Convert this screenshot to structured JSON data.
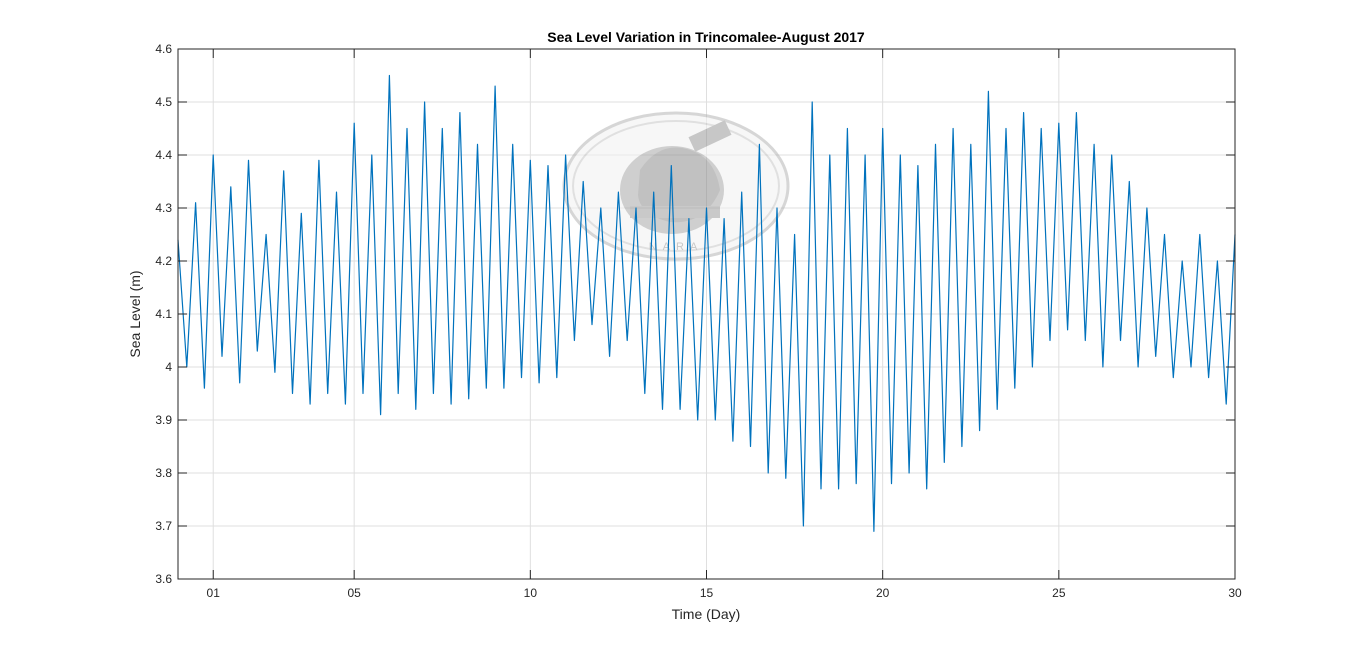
{
  "chart_data": {
    "type": "line",
    "title": "Sea Level Variation in Trincomalee-August 2017",
    "xlabel": "Time (Day)",
    "ylabel": "Sea Level (m)",
    "xlim": [
      0,
      30
    ],
    "ylim": [
      3.6,
      4.6
    ],
    "grid": true,
    "x_ticks": [
      1,
      5,
      10,
      15,
      20,
      25,
      30
    ],
    "x_tick_labels": [
      "01",
      "05",
      "10",
      "15",
      "20",
      "25",
      "30"
    ],
    "y_ticks": [
      3.6,
      3.7,
      3.8,
      3.9,
      4.0,
      4.1,
      4.2,
      4.3,
      4.4,
      4.5,
      4.6
    ],
    "y_tick_labels": [
      "3.6",
      "3.7",
      "3.8",
      "3.9",
      "4",
      "4.1",
      "4.2",
      "4.3",
      "4.4",
      "4.5",
      "4.6"
    ],
    "series": [
      {
        "name": "Sea Level",
        "color": "#0072bd",
        "x": [
          0,
          0.25,
          0.5,
          0.75,
          1,
          1.25,
          1.5,
          1.75,
          2,
          2.25,
          2.5,
          2.75,
          3,
          3.25,
          3.5,
          3.75,
          4,
          4.25,
          4.5,
          4.75,
          5,
          5.25,
          5.5,
          5.75,
          6,
          6.25,
          6.5,
          6.75,
          7,
          7.25,
          7.5,
          7.75,
          8,
          8.25,
          8.5,
          8.75,
          9,
          9.25,
          9.5,
          9.75,
          10,
          10.25,
          10.5,
          10.75,
          11,
          11.25,
          11.5,
          11.75,
          12,
          12.25,
          12.5,
          12.75,
          13,
          13.25,
          13.5,
          13.75,
          14,
          14.25,
          14.5,
          14.75,
          15,
          15.25,
          15.5,
          15.75,
          16,
          16.25,
          16.5,
          16.75,
          17,
          17.25,
          17.5,
          17.75,
          18,
          18.25,
          18.5,
          18.75,
          19,
          19.25,
          19.5,
          19.75,
          20,
          20.25,
          20.5,
          20.75,
          21,
          21.25,
          21.5,
          21.75,
          22,
          22.25,
          22.5,
          22.75,
          23,
          23.25,
          23.5,
          23.75,
          24,
          24.25,
          24.5,
          24.75,
          25,
          25.25,
          25.5,
          25.75,
          26,
          26.25,
          26.5,
          26.75,
          27,
          27.25,
          27.5,
          27.75,
          28,
          28.25,
          28.5,
          28.75,
          29,
          29.25,
          29.5,
          29.75,
          30
        ],
        "y": [
          4.24,
          4.0,
          4.31,
          3.96,
          4.4,
          4.02,
          4.34,
          3.97,
          4.39,
          4.03,
          4.25,
          3.99,
          4.37,
          3.95,
          4.29,
          3.93,
          4.39,
          3.95,
          4.33,
          3.93,
          4.46,
          3.95,
          4.4,
          3.91,
          4.55,
          3.95,
          4.45,
          3.92,
          4.5,
          3.95,
          4.45,
          3.93,
          4.48,
          3.94,
          4.42,
          3.96,
          4.53,
          3.96,
          4.42,
          3.98,
          4.39,
          3.97,
          4.38,
          3.98,
          4.4,
          4.05,
          4.35,
          4.08,
          4.3,
          4.02,
          4.33,
          4.05,
          4.3,
          3.95,
          4.33,
          3.92,
          4.38,
          3.92,
          4.28,
          3.9,
          4.3,
          3.9,
          4.28,
          3.86,
          4.33,
          3.85,
          4.42,
          3.8,
          4.3,
          3.79,
          4.25,
          3.7,
          4.5,
          3.77,
          4.4,
          3.77,
          4.45,
          3.78,
          4.4,
          3.69,
          4.45,
          3.78,
          4.4,
          3.8,
          4.38,
          3.77,
          4.42,
          3.82,
          4.45,
          3.85,
          4.42,
          3.88,
          4.52,
          3.92,
          4.45,
          3.96,
          4.48,
          4.0,
          4.45,
          4.05,
          4.46,
          4.07,
          4.48,
          4.05,
          4.42,
          4.0,
          4.4,
          4.05,
          4.35,
          4.0,
          4.3,
          4.02,
          4.25,
          3.98,
          4.2,
          4.0,
          4.25,
          3.98,
          4.2,
          3.93,
          4.25
        ]
      }
    ],
    "watermark": {
      "name": "oceanography-division-seal",
      "lettering": "OCEANOGRAPHY DIVISION NARA"
    }
  }
}
